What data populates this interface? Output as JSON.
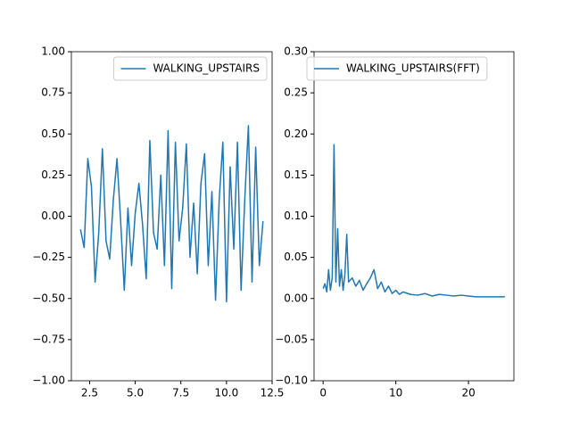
{
  "chart_data": [
    {
      "type": "line",
      "x": [
        2.0,
        2.2,
        2.4,
        2.6,
        2.8,
        3.0,
        3.2,
        3.4,
        3.6,
        3.8,
        4.0,
        4.2,
        4.4,
        4.6,
        4.8,
        5.0,
        5.2,
        5.4,
        5.6,
        5.8,
        6.0,
        6.2,
        6.4,
        6.6,
        6.8,
        7.0,
        7.2,
        7.4,
        7.6,
        7.8,
        8.0,
        8.2,
        8.4,
        8.6,
        8.8,
        9.0,
        9.2,
        9.4,
        9.6,
        9.8,
        10.0,
        10.2,
        10.4,
        10.6,
        10.8,
        11.0,
        11.2,
        11.4,
        11.6,
        11.8,
        12.0
      ],
      "series": [
        {
          "name": "WALKING_UPSTAIRS",
          "color": "#1f77b4",
          "values": [
            -0.08,
            -0.19,
            0.35,
            0.18,
            -0.4,
            -0.1,
            0.41,
            -0.15,
            -0.26,
            0.1,
            0.35,
            -0.03,
            -0.45,
            0.05,
            -0.3,
            0.02,
            0.2,
            -0.05,
            -0.38,
            0.46,
            -0.1,
            -0.2,
            0.25,
            -0.3,
            0.52,
            -0.44,
            0.45,
            -0.15,
            0.05,
            0.44,
            -0.25,
            0.08,
            -0.35,
            0.2,
            0.38,
            -0.3,
            0.15,
            -0.51,
            0.1,
            0.45,
            -0.52,
            0.3,
            -0.2,
            0.45,
            -0.45,
            0.1,
            0.55,
            -0.4,
            0.42,
            -0.3,
            -0.03
          ]
        }
      ],
      "xlim": [
        1.5,
        12.5
      ],
      "ylim": [
        -1,
        1
      ],
      "xticks": [
        2.5,
        {
          "value": 5,
          "label": "5.0"
        },
        7.5,
        {
          "value": 10,
          "label": "10.0"
        },
        12.5
      ],
      "yticks": [
        {
          "value": -1,
          "label": "−1.00"
        },
        {
          "value": -0.75,
          "label": "−0.75"
        },
        {
          "value": -0.5,
          "label": "−0.50"
        },
        {
          "value": -0.25,
          "label": "−0.25"
        },
        {
          "value": 0,
          "label": "0.00"
        },
        {
          "value": 0.25,
          "label": "0.25"
        },
        {
          "value": 0.5,
          "label": "0.50"
        },
        {
          "value": 0.75,
          "label": "0.75"
        },
        {
          "value": 1,
          "label": "1.00"
        }
      ],
      "legend": "upper right"
    },
    {
      "type": "line",
      "x": [
        0,
        0.25,
        0.5,
        0.75,
        1.0,
        1.25,
        1.5,
        1.75,
        2.0,
        2.25,
        2.5,
        2.75,
        3.0,
        3.25,
        3.5,
        4,
        4.5,
        5,
        5.5,
        6,
        6.5,
        7,
        7.5,
        8,
        8.5,
        9,
        9.5,
        10,
        10.5,
        11,
        12,
        13,
        14,
        15,
        16,
        17,
        18,
        19,
        20,
        21,
        22,
        23,
        24,
        25
      ],
      "series": [
        {
          "name": "WALKING_UPSTAIRS(FFT)",
          "color": "#1f77b4",
          "values": [
            0.012,
            0.018,
            0.008,
            0.035,
            0.01,
            0.025,
            0.187,
            0.02,
            0.085,
            0.015,
            0.035,
            0.01,
            0.03,
            0.078,
            0.02,
            0.025,
            0.015,
            0.022,
            0.01,
            0.018,
            0.025,
            0.035,
            0.012,
            0.02,
            0.008,
            0.015,
            0.006,
            0.01,
            0.005,
            0.008,
            0.005,
            0.004,
            0.006,
            0.003,
            0.005,
            0.004,
            0.003,
            0.004,
            0.003,
            0.002,
            0.002,
            0.002,
            0.002,
            0.002
          ]
        }
      ],
      "xlim": [
        -1.25,
        26.25
      ],
      "ylim": [
        -0.1,
        0.3
      ],
      "xticks": [
        0,
        10,
        20
      ],
      "yticks": [
        {
          "value": -0.1,
          "label": "−0.10"
        },
        {
          "value": -0.05,
          "label": "−0.05"
        },
        {
          "value": 0,
          "label": "0.00"
        },
        {
          "value": 0.05,
          "label": "0.05"
        },
        {
          "value": 0.1,
          "label": "0.10"
        },
        {
          "value": 0.15,
          "label": "0.15"
        },
        {
          "value": 0.2,
          "label": "0.20"
        },
        {
          "value": 0.25,
          "label": "0.25"
        },
        {
          "value": 0.3,
          "label": "0.30"
        }
      ],
      "legend": "upper left"
    }
  ]
}
